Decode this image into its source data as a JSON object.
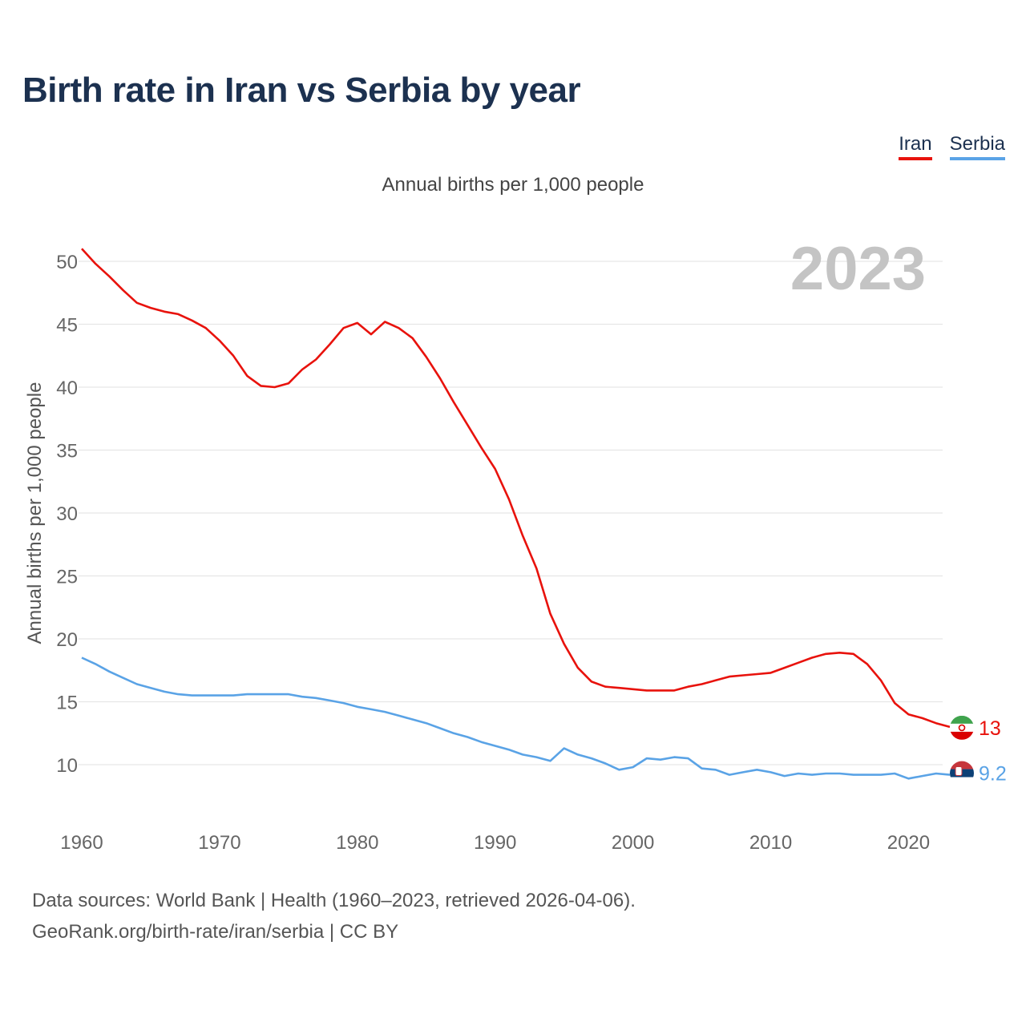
{
  "title": "Birth rate in Iran vs Serbia by year",
  "subtitle": "Annual births per 1,000 people",
  "legend": [
    {
      "name": "Iran",
      "color": "#e8120c"
    },
    {
      "name": "Serbia",
      "color": "#5aa3e6"
    }
  ],
  "year_watermark": "2023",
  "footer": {
    "line1": "Data sources: World Bank | Health (1960–2023, retrieved 2026-04-06).",
    "line2": "GeoRank.org/birth-rate/iran/serbia | CC BY"
  },
  "chart_data": {
    "type": "line",
    "title": "Birth rate in Iran vs Serbia by year",
    "ylabel": "Annual births per 1,000 people",
    "xlabel": "",
    "xlim": [
      1960,
      2023
    ],
    "ylim": [
      7,
      52
    ],
    "yticks": [
      10,
      15,
      20,
      25,
      30,
      35,
      40,
      45,
      50
    ],
    "xticks": [
      1960,
      1970,
      1980,
      1990,
      2000,
      2010,
      2020
    ],
    "grid": true,
    "x": [
      1960,
      1961,
      1962,
      1963,
      1964,
      1965,
      1966,
      1967,
      1968,
      1969,
      1970,
      1971,
      1972,
      1973,
      1974,
      1975,
      1976,
      1977,
      1978,
      1979,
      1980,
      1981,
      1982,
      1983,
      1984,
      1985,
      1986,
      1987,
      1988,
      1989,
      1990,
      1991,
      1992,
      1993,
      1994,
      1995,
      1996,
      1997,
      1998,
      1999,
      2000,
      2001,
      2002,
      2003,
      2004,
      2005,
      2006,
      2007,
      2008,
      2009,
      2010,
      2011,
      2012,
      2013,
      2014,
      2015,
      2016,
      2017,
      2018,
      2019,
      2020,
      2021,
      2022,
      2023
    ],
    "series": [
      {
        "name": "Iran",
        "color": "#e8120c",
        "end_label": "13",
        "values": [
          51.0,
          49.8,
          48.8,
          47.7,
          46.7,
          46.3,
          46.0,
          45.8,
          45.3,
          44.7,
          43.7,
          42.5,
          40.9,
          40.1,
          40.0,
          40.3,
          41.4,
          42.2,
          43.4,
          44.7,
          45.1,
          44.2,
          45.2,
          44.7,
          43.9,
          42.4,
          40.7,
          38.8,
          37.0,
          35.2,
          33.5,
          31.1,
          28.2,
          25.6,
          22.0,
          19.6,
          17.7,
          16.6,
          16.2,
          16.1,
          16.0,
          15.9,
          15.9,
          15.9,
          16.2,
          16.4,
          16.7,
          17.0,
          17.1,
          17.2,
          17.3,
          17.7,
          18.1,
          18.5,
          18.8,
          18.9,
          18.8,
          18.0,
          16.7,
          14.9,
          14.0,
          13.7,
          13.3,
          13.0
        ]
      },
      {
        "name": "Serbia",
        "color": "#5aa3e6",
        "end_label": "9.2",
        "values": [
          18.5,
          18.0,
          17.4,
          16.9,
          16.4,
          16.1,
          15.8,
          15.6,
          15.5,
          15.5,
          15.5,
          15.5,
          15.6,
          15.6,
          15.6,
          15.6,
          15.4,
          15.3,
          15.1,
          14.9,
          14.6,
          14.4,
          14.2,
          13.9,
          13.6,
          13.3,
          12.9,
          12.5,
          12.2,
          11.8,
          11.5,
          11.2,
          10.8,
          10.6,
          10.3,
          11.3,
          10.8,
          10.5,
          10.1,
          9.6,
          9.8,
          10.5,
          10.4,
          10.6,
          10.5,
          9.7,
          9.6,
          9.2,
          9.4,
          9.6,
          9.4,
          9.1,
          9.3,
          9.2,
          9.3,
          9.3,
          9.2,
          9.2,
          9.2,
          9.3,
          8.9,
          9.1,
          9.3,
          9.2
        ]
      }
    ]
  }
}
